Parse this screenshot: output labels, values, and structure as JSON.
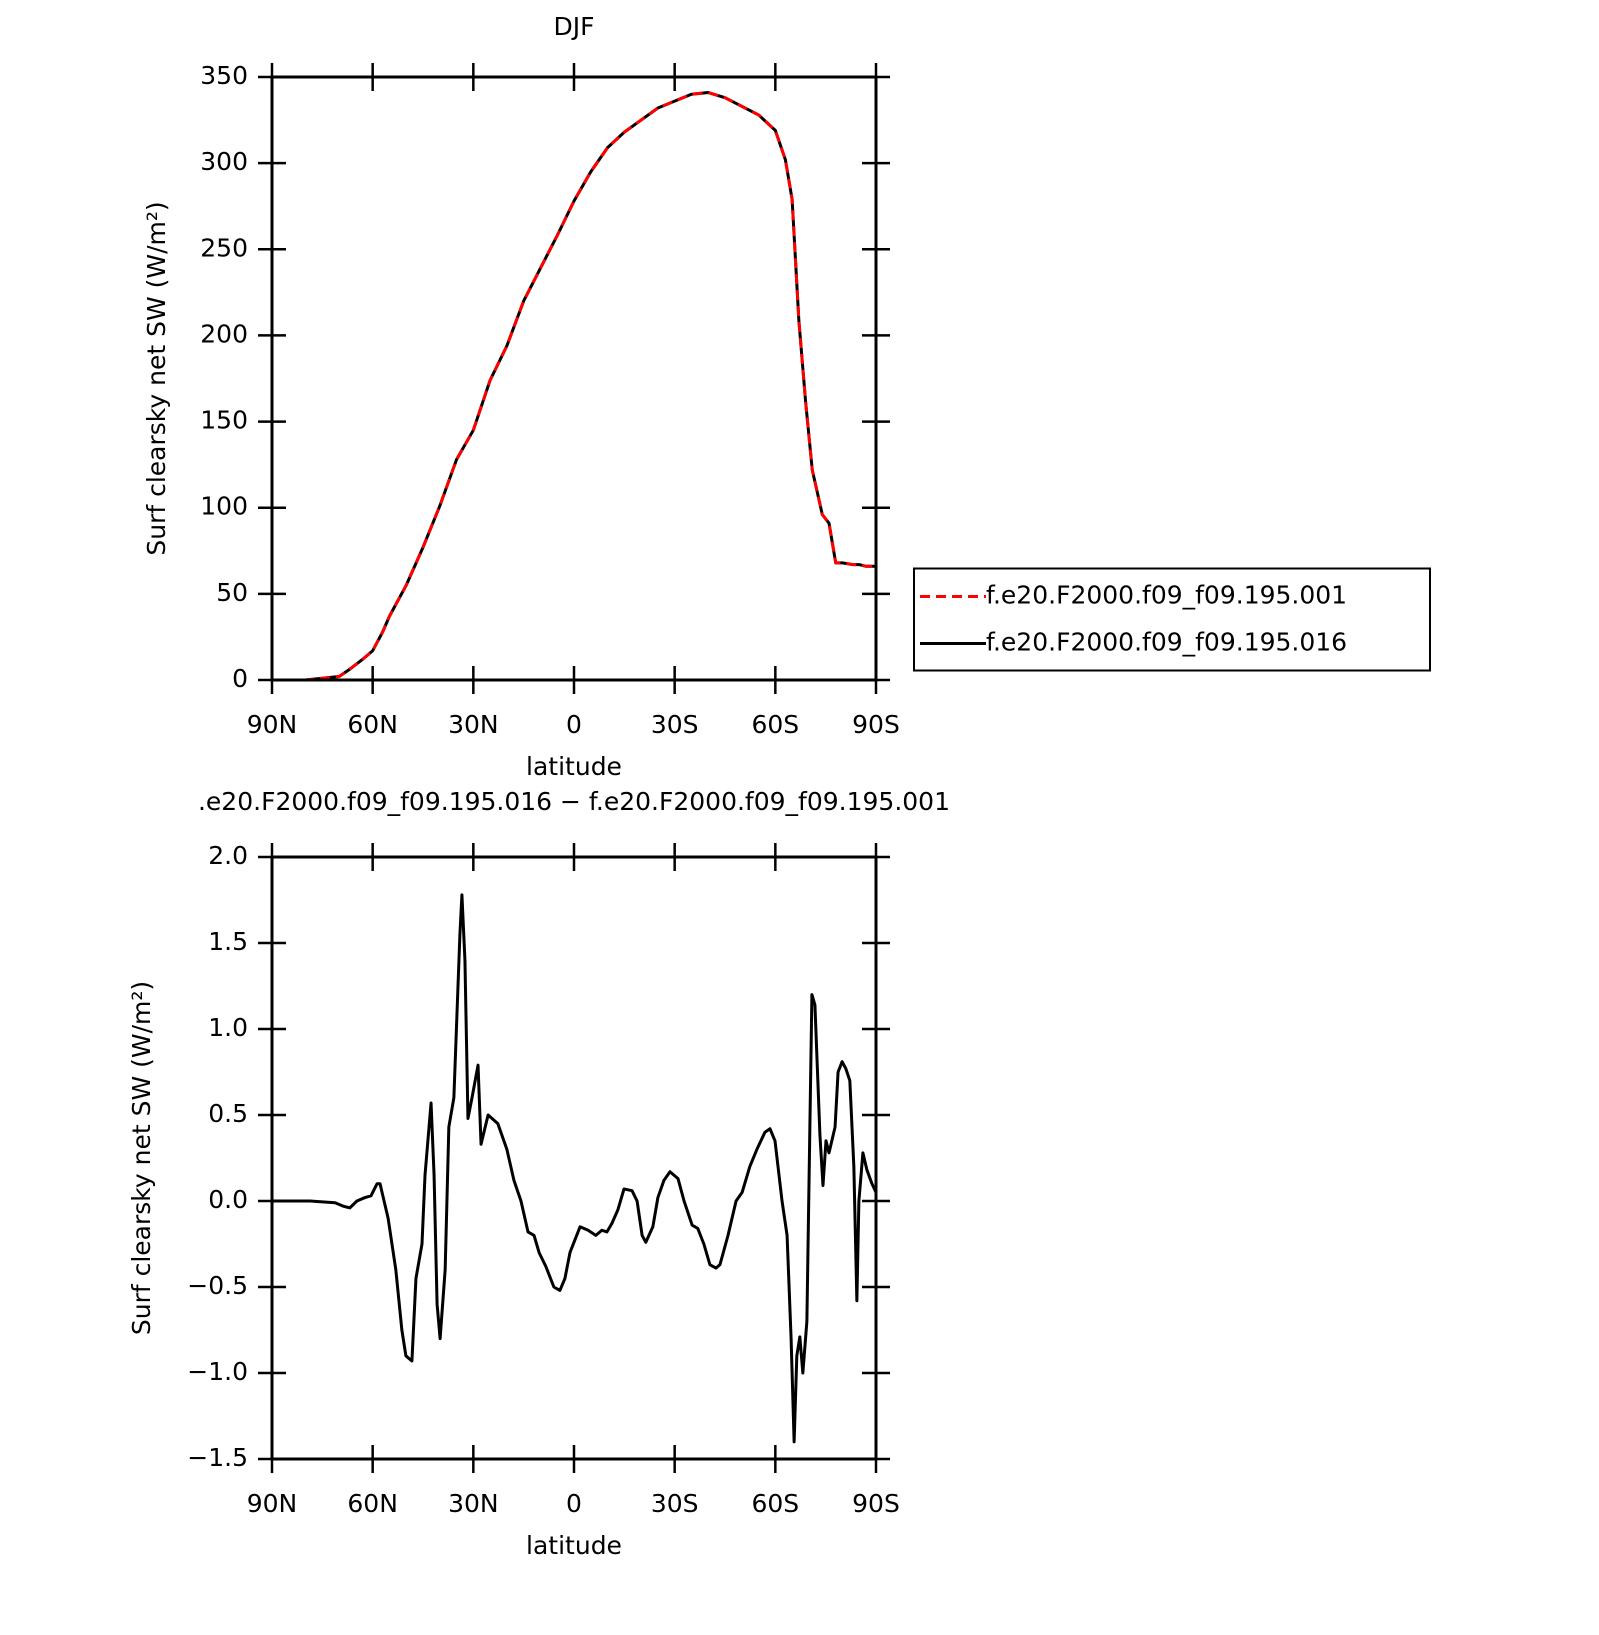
{
  "chart_data": [
    {
      "type": "line",
      "title": "DJF",
      "xlabel": "latitude",
      "ylabel": "Surf clearsky net SW (W/m²)",
      "x": [
        90,
        85,
        80,
        75,
        70,
        67,
        63,
        60,
        57,
        55,
        50,
        45,
        40,
        35,
        30,
        25,
        20,
        15,
        10,
        5,
        0,
        -5,
        -10,
        -15,
        -20,
        -25,
        -30,
        -35,
        -40,
        -45,
        -50,
        -55,
        -60,
        -63,
        -65,
        -67,
        -69,
        -71,
        -74,
        -76,
        -78,
        -80,
        -83,
        -85,
        -87,
        -90
      ],
      "series": [
        {
          "name": "f.e20.F2000.f09_f09.195.016",
          "color": "#000000",
          "linestyle": "solid",
          "values": [
            0,
            0,
            0,
            1,
            2,
            6,
            12,
            17,
            28,
            37,
            55,
            77,
            101,
            128,
            145,
            174,
            194,
            220,
            239,
            258,
            278,
            295,
            309,
            318,
            325,
            332,
            336,
            340,
            341,
            338,
            333,
            328,
            319,
            302,
            279,
            209,
            162,
            122,
            96,
            91,
            68,
            68,
            67,
            67,
            66,
            66
          ]
        },
        {
          "name": "f.e20.F2000.f09_f09.195.001",
          "color": "#ff0000",
          "linestyle": "dashed",
          "values": [
            0,
            0,
            0,
            1,
            2,
            6,
            12,
            17,
            28,
            37,
            55,
            77,
            101,
            128,
            145,
            174,
            194,
            220,
            239,
            258,
            278,
            295,
            309,
            318,
            325,
            332,
            336,
            340,
            341,
            338,
            333,
            328,
            319,
            302,
            279,
            209,
            162,
            122,
            96,
            91,
            68,
            68,
            67,
            67,
            66,
            66
          ]
        }
      ],
      "legend": "right",
      "xlim": [
        90,
        -90
      ],
      "xticks": [
        {
          "value": 90,
          "label": "90N"
        },
        {
          "value": 60,
          "label": "60N"
        },
        {
          "value": 30,
          "label": "30N"
        },
        0,
        {
          "value": -30,
          "label": "30S"
        },
        {
          "value": -60,
          "label": "60S"
        },
        {
          "value": -90,
          "label": "90S"
        }
      ],
      "ylim": [
        0,
        350
      ],
      "yticks": [
        0,
        50,
        100,
        150,
        200,
        250,
        300,
        350
      ]
    },
    {
      "type": "line",
      "title": ".e20.F2000.f09_f09.195.016 − f.e20.F2000.f09_f09.195.001",
      "xlabel": "latitude",
      "ylabel": "Surf clearsky net SW (W/m²)",
      "x": [
        90,
        78.7,
        71.2,
        68.8,
        66.8,
        64.7,
        62.3,
        60.5,
        58.7,
        57.8,
        55.4,
        53.1,
        51.3,
        50.1,
        48.3,
        47.1,
        45.3,
        44.4,
        42.6,
        41.7,
        40.8,
        39.9,
        38.4,
        37.3,
        35.8,
        34.0,
        33.4,
        32.5,
        31.6,
        30.4,
        28.6,
        27.7,
        25.6,
        22.7,
        20.0,
        17.9,
        15.8,
        13.7,
        11.9,
        10.4,
        8.4,
        6.0,
        4.2,
        2.7,
        1.2,
        -1.8,
        -4.2,
        -6.5,
        -8.3,
        -9.8,
        -11.3,
        -13.1,
        -14.9,
        -17.3,
        -18.8,
        -20.3,
        -21.4,
        -23.5,
        -25.0,
        -26.8,
        -28.6,
        -31.0,
        -32.8,
        -35.2,
        -36.9,
        -38.7,
        -40.5,
        -42.3,
        -43.5,
        -45.9,
        -48.3,
        -50.1,
        -52.4,
        -54.5,
        -56.9,
        -58.4,
        -59.9,
        -62.0,
        -63.5,
        -64.7,
        -65.6,
        -66.4,
        -67.3,
        -68.2,
        -69.4,
        -70.9,
        -71.8,
        -73.3,
        -74.2,
        -75.1,
        -76.0,
        -77.8,
        -78.7,
        -79.9,
        -81.0,
        -82.2,
        -83.4,
        -84.3,
        -84.9,
        -86.1,
        -87.3,
        -88.8,
        -90
      ],
      "values": [
        0,
        0,
        -0.01,
        -0.03,
        -0.04,
        0.0,
        0.02,
        0.03,
        0.1,
        0.1,
        -0.1,
        -0.4,
        -0.75,
        -0.9,
        -0.93,
        -0.45,
        -0.25,
        0.15,
        0.57,
        0.15,
        -0.6,
        -0.8,
        -0.4,
        0.43,
        0.6,
        1.55,
        1.78,
        1.4,
        0.48,
        0.6,
        0.79,
        0.33,
        0.5,
        0.45,
        0.3,
        0.12,
        0.0,
        -0.18,
        -0.2,
        -0.3,
        -0.38,
        -0.5,
        -0.52,
        -0.45,
        -0.3,
        -0.15,
        -0.17,
        -0.2,
        -0.17,
        -0.18,
        -0.13,
        -0.05,
        0.07,
        0.06,
        0.0,
        -0.2,
        -0.24,
        -0.15,
        0.02,
        0.12,
        0.17,
        0.13,
        0.0,
        -0.14,
        -0.16,
        -0.25,
        -0.37,
        -0.39,
        -0.37,
        -0.2,
        0.0,
        0.05,
        0.2,
        0.3,
        0.4,
        0.42,
        0.35,
        0.0,
        -0.2,
        -0.8,
        -1.4,
        -0.9,
        -0.79,
        -1.0,
        -0.7,
        1.2,
        1.14,
        0.38,
        0.09,
        0.35,
        0.28,
        0.43,
        0.75,
        0.81,
        0.77,
        0.7,
        0.2,
        -0.58,
        0.0,
        0.28,
        0.18,
        0.1,
        0.05
      ],
      "color": "#000000",
      "xlim": [
        90,
        -90
      ],
      "xticks": [
        {
          "value": 90,
          "label": "90N"
        },
        {
          "value": 60,
          "label": "60N"
        },
        {
          "value": 30,
          "label": "30N"
        },
        0,
        {
          "value": -30,
          "label": "30S"
        },
        {
          "value": -60,
          "label": "60S"
        },
        {
          "value": -90,
          "label": "90S"
        }
      ],
      "ylim": [
        -1.5,
        2
      ],
      "yticks": [
        {
          "value": 2,
          "label": "2.0"
        },
        1.5,
        {
          "value": 1,
          "label": "1.0"
        },
        0.5,
        {
          "value": 0,
          "label": "0.0"
        },
        {
          "value": -0.5,
          "label": "−0.5"
        },
        {
          "value": -1,
          "label": "−1.0"
        },
        {
          "value": -1.5,
          "label": "−1.5"
        }
      ]
    }
  ]
}
